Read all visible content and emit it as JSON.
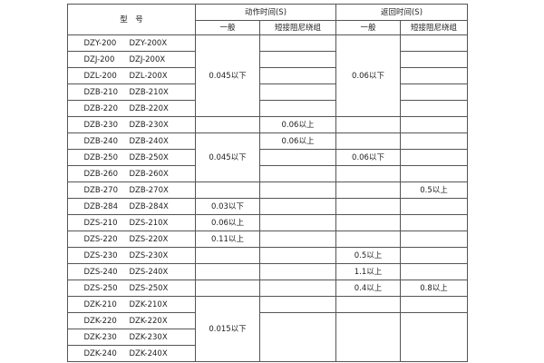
{
  "header": {
    "model": "型　号",
    "action_time": "动作时间(S)",
    "return_time": "返回时间(S)",
    "general": "一般",
    "short_damping": "短接阻尼绕组",
    "general_2": "一般",
    "short_damping_2": "短接阻尼绕组"
  },
  "rows": [
    {
      "model": [
        "DZY-200",
        "DZY-200X"
      ],
      "action_general": "0.045以下",
      "action_short": "",
      "return_general": "0.06以下",
      "return_short": ""
    },
    {
      "model": [
        "DZJ-200",
        "DZJ-200X"
      ],
      "action_general": "",
      "action_short": "",
      "return_general": "",
      "return_short": ""
    },
    {
      "model": [
        "DZL-200",
        "DZL-200X"
      ],
      "action_general": "",
      "action_short": "",
      "return_general": "",
      "return_short": ""
    },
    {
      "model": [
        "DZB-210",
        "DZB-210X"
      ],
      "action_general": "",
      "action_short": "",
      "return_general": "",
      "return_short": ""
    },
    {
      "model": [
        "DZB-220",
        "DZB-220X"
      ],
      "action_general": "",
      "action_short": "",
      "return_general": "",
      "return_short": ""
    },
    {
      "model": [
        "DZB-230",
        "DZB-230X"
      ],
      "action_general": "",
      "action_short": "0.06以上",
      "return_general": "",
      "return_short": ""
    },
    {
      "model": [
        "DZB-240",
        "DZB-240X"
      ],
      "action_general": "0.045以下",
      "action_short": "0.06以上",
      "return_general": "",
      "return_short": ""
    },
    {
      "model": [
        "DZB-250",
        "DZB-250X"
      ],
      "action_general": "",
      "action_short": "",
      "return_general": "0.06以下",
      "return_short": ""
    },
    {
      "model": [
        "DZB-260",
        "DZB-260X"
      ],
      "action_general": "",
      "action_short": "",
      "return_general": "",
      "return_short": ""
    },
    {
      "model": [
        "DZB-270",
        "DZB-270X"
      ],
      "action_general": "",
      "action_short": "",
      "return_general": "",
      "return_short": "0.5以上"
    },
    {
      "model": [
        "DZB-284",
        "DZB-284X"
      ],
      "action_general": "0.03以下",
      "action_short": "",
      "return_general": "",
      "return_short": ""
    },
    {
      "model": [
        "DZS-210",
        "DZS-210X"
      ],
      "action_general": "0.06以上",
      "action_short": "",
      "return_general": "",
      "return_short": ""
    },
    {
      "model": [
        "DZS-220",
        "DZS-220X"
      ],
      "action_general": "0.11以上",
      "action_short": "",
      "return_general": "",
      "return_short": ""
    },
    {
      "model": [
        "DZS-230",
        "DZS-230X"
      ],
      "action_general": "",
      "action_short": "",
      "return_general": "0.5以上",
      "return_short": ""
    },
    {
      "model": [
        "DZS-240",
        "DZS-240X"
      ],
      "action_general": "",
      "action_short": "",
      "return_general": "1.1以上",
      "return_short": ""
    },
    {
      "model": [
        "DZS-250",
        "DZS-250X"
      ],
      "action_general": "",
      "action_short": "",
      "return_general": "0.4以上",
      "return_short": "0.8以上"
    },
    {
      "model": [
        "DZK-210",
        "DZK-210X"
      ],
      "action_general": "0.015以下",
      "action_short": "",
      "return_general": "",
      "return_short": ""
    },
    {
      "model": [
        "DZK-220",
        "DZK-220X"
      ],
      "action_general": "",
      "action_short": "",
      "return_general": "",
      "return_short": ""
    },
    {
      "model": [
        "DZK-230",
        "DZK-230X"
      ],
      "action_general": "",
      "action_short": "",
      "return_general": "",
      "return_short": ""
    },
    {
      "model": [
        "DZK-240",
        "DZK-240X"
      ],
      "action_general": "",
      "action_short": "",
      "return_general": "",
      "return_short": ""
    }
  ]
}
